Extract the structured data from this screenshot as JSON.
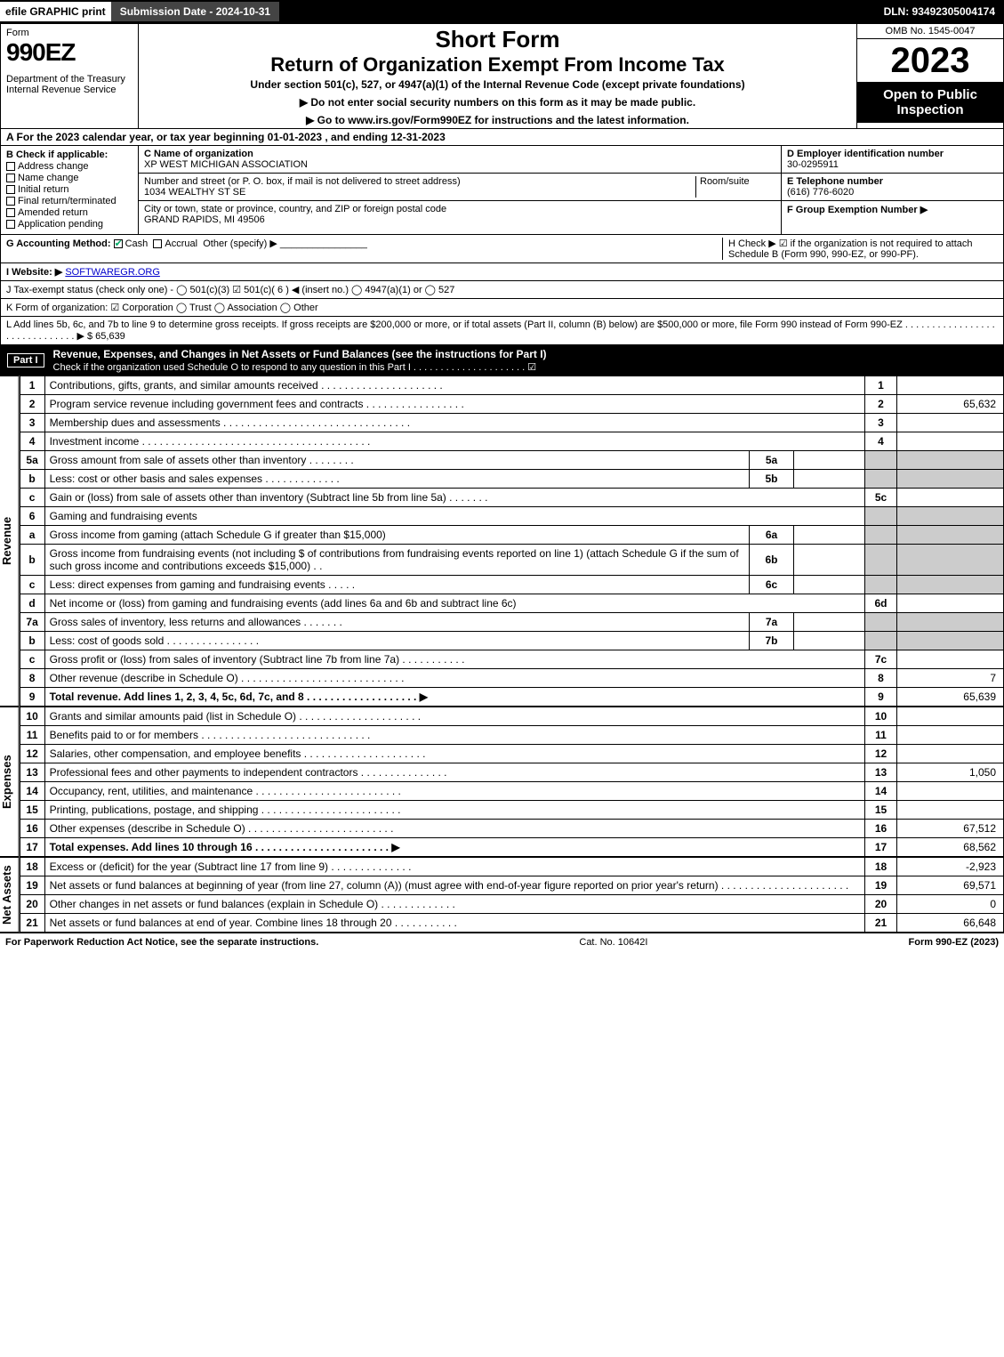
{
  "topbar": {
    "efile": "efile GRAPHIC print",
    "submission": "Submission Date - 2024-10-31",
    "dln": "DLN: 93492305004174"
  },
  "header": {
    "form_label": "Form",
    "form_number": "990EZ",
    "dept": "Department of the Treasury\nInternal Revenue Service",
    "short": "Short Form",
    "title": "Return of Organization Exempt From Income Tax",
    "under": "Under section 501(c), 527, or 4947(a)(1) of the Internal Revenue Code (except private foundations)",
    "note1": "▶ Do not enter social security numbers on this form as it may be made public.",
    "note2": "▶ Go to www.irs.gov/Form990EZ for instructions and the latest information.",
    "omb": "OMB No. 1545-0047",
    "year": "2023",
    "open": "Open to Public Inspection"
  },
  "lineA": "A  For the 2023 calendar year, or tax year beginning 01-01-2023 , and ending 12-31-2023",
  "sectionB": {
    "label": "B  Check if applicable:",
    "items": [
      "Address change",
      "Name change",
      "Initial return",
      "Final return/terminated",
      "Amended return",
      "Application pending"
    ]
  },
  "sectionC": {
    "name_lbl": "C Name of organization",
    "name": "XP WEST MICHIGAN ASSOCIATION",
    "addr_lbl": "Number and street (or P. O. box, if mail is not delivered to street address)",
    "room_lbl": "Room/suite",
    "addr": "1034 WEALTHY ST SE",
    "city_lbl": "City or town, state or province, country, and ZIP or foreign postal code",
    "city": "GRAND RAPIDS, MI  49506"
  },
  "sectionD": {
    "ein_lbl": "D Employer identification number",
    "ein": "30-0295911",
    "tel_lbl": "E Telephone number",
    "tel": "(616) 776-6020",
    "grp_lbl": "F Group Exemption Number  ▶"
  },
  "lineG": {
    "label": "G Accounting Method:",
    "cash": "Cash",
    "accrual": "Accrual",
    "other": "Other (specify) ▶"
  },
  "lineH": "H  Check ▶ ☑ if the organization is not required to attach Schedule B (Form 990, 990-EZ, or 990-PF).",
  "lineI": {
    "label": "I Website: ▶",
    "val": "SOFTWAREGR.ORG"
  },
  "lineJ": "J Tax-exempt status (check only one) - ◯ 501(c)(3)  ☑ 501(c)( 6 ) ◀ (insert no.)  ◯ 4947(a)(1) or  ◯ 527",
  "lineK": "K Form of organization:  ☑ Corporation  ◯ Trust  ◯ Association  ◯ Other",
  "lineL": {
    "text": "L Add lines 5b, 6c, and 7b to line 9 to determine gross receipts. If gross receipts are $200,000 or more, or if total assets (Part II, column (B) below) are $500,000 or more, file Form 990 instead of Form 990-EZ . . . . . . . . . . . . . . . . . . . . . . . . . . . . . . ▶ $",
    "amount": "65,639"
  },
  "part1": {
    "title": "Revenue, Expenses, and Changes in Net Assets or Fund Balances (see the instructions for Part I)",
    "sub": "Check if the organization used Schedule O to respond to any question in this Part I . . . . . . . . . . . . . . . . . . . . . ☑"
  },
  "sections": {
    "revenue": "Revenue",
    "expenses": "Expenses",
    "netassets": "Net Assets"
  },
  "rows": [
    {
      "n": "1",
      "d": "Contributions, gifts, grants, and similar amounts received . . . . . . . . . . . . . . . . . . . . .",
      "r": "1",
      "a": ""
    },
    {
      "n": "2",
      "d": "Program service revenue including government fees and contracts . . . . . . . . . . . . . . . . .",
      "r": "2",
      "a": "65,632"
    },
    {
      "n": "3",
      "d": "Membership dues and assessments . . . . . . . . . . . . . . . . . . . . . . . . . . . . . . . .",
      "r": "3",
      "a": ""
    },
    {
      "n": "4",
      "d": "Investment income . . . . . . . . . . . . . . . . . . . . . . . . . . . . . . . . . . . . . . .",
      "r": "4",
      "a": ""
    },
    {
      "n": "5a",
      "d": "Gross amount from sale of assets other than inventory . . . . . . . .",
      "sub": "5a",
      "sv": ""
    },
    {
      "n": "b",
      "d": "Less: cost or other basis and sales expenses . . . . . . . . . . . . .",
      "sub": "5b",
      "sv": ""
    },
    {
      "n": "c",
      "d": "Gain or (loss) from sale of assets other than inventory (Subtract line 5b from line 5a) . . . . . . .",
      "r": "5c",
      "a": ""
    },
    {
      "n": "6",
      "d": "Gaming and fundraising events",
      "noamt": true
    },
    {
      "n": "a",
      "d": "Gross income from gaming (attach Schedule G if greater than $15,000)",
      "sub": "6a",
      "sv": ""
    },
    {
      "n": "b",
      "d": "Gross income from fundraising events (not including $                      of contributions from fundraising events reported on line 1) (attach Schedule G if the sum of such gross income and contributions exceeds $15,000)   . .",
      "sub": "6b",
      "sv": ""
    },
    {
      "n": "c",
      "d": "Less: direct expenses from gaming and fundraising events   . . . . .",
      "sub": "6c",
      "sv": ""
    },
    {
      "n": "d",
      "d": "Net income or (loss) from gaming and fundraising events (add lines 6a and 6b and subtract line 6c)",
      "r": "6d",
      "a": ""
    },
    {
      "n": "7a",
      "d": "Gross sales of inventory, less returns and allowances . . . . . . .",
      "sub": "7a",
      "sv": ""
    },
    {
      "n": "b",
      "d": "Less: cost of goods sold        . . . . . . . . . . . . . . . .",
      "sub": "7b",
      "sv": ""
    },
    {
      "n": "c",
      "d": "Gross profit or (loss) from sales of inventory (Subtract line 7b from line 7a) . . . . . . . . . . .",
      "r": "7c",
      "a": ""
    },
    {
      "n": "8",
      "d": "Other revenue (describe in Schedule O) . . . . . . . . . . . . . . . . . . . . . . . . . . . .",
      "r": "8",
      "a": "7"
    },
    {
      "n": "9",
      "d": "Total revenue. Add lines 1, 2, 3, 4, 5c, 6d, 7c, and 8  . . . . . . . . . . . . . . . . . . . ▶",
      "r": "9",
      "a": "65,639",
      "bold": true
    }
  ],
  "exp_rows": [
    {
      "n": "10",
      "d": "Grants and similar amounts paid (list in Schedule O) . . . . . . . . . . . . . . . . . . . . .",
      "r": "10",
      "a": ""
    },
    {
      "n": "11",
      "d": "Benefits paid to or for members    . . . . . . . . . . . . . . . . . . . . . . . . . . . . .",
      "r": "11",
      "a": ""
    },
    {
      "n": "12",
      "d": "Salaries, other compensation, and employee benefits . . . . . . . . . . . . . . . . . . . . .",
      "r": "12",
      "a": ""
    },
    {
      "n": "13",
      "d": "Professional fees and other payments to independent contractors . . . . . . . . . . . . . . .",
      "r": "13",
      "a": "1,050"
    },
    {
      "n": "14",
      "d": "Occupancy, rent, utilities, and maintenance . . . . . . . . . . . . . . . . . . . . . . . . .",
      "r": "14",
      "a": ""
    },
    {
      "n": "15",
      "d": "Printing, publications, postage, and shipping . . . . . . . . . . . . . . . . . . . . . . . .",
      "r": "15",
      "a": ""
    },
    {
      "n": "16",
      "d": "Other expenses (describe in Schedule O)   . . . . . . . . . . . . . . . . . . . . . . . . .",
      "r": "16",
      "a": "67,512"
    },
    {
      "n": "17",
      "d": "Total expenses. Add lines 10 through 16    . . . . . . . . . . . . . . . . . . . . . . . ▶",
      "r": "17",
      "a": "68,562",
      "bold": true
    }
  ],
  "na_rows": [
    {
      "n": "18",
      "d": "Excess or (deficit) for the year (Subtract line 17 from line 9)       . . . . . . . . . . . . . .",
      "r": "18",
      "a": "-2,923"
    },
    {
      "n": "19",
      "d": "Net assets or fund balances at beginning of year (from line 27, column (A)) (must agree with end-of-year figure reported on prior year's return) . . . . . . . . . . . . . . . . . . . . . .",
      "r": "19",
      "a": "69,571"
    },
    {
      "n": "20",
      "d": "Other changes in net assets or fund balances (explain in Schedule O) . . . . . . . . . . . . .",
      "r": "20",
      "a": "0"
    },
    {
      "n": "21",
      "d": "Net assets or fund balances at end of year. Combine lines 18 through 20 . . . . . . . . . . .",
      "r": "21",
      "a": "66,648"
    }
  ],
  "footer": {
    "left": "For Paperwork Reduction Act Notice, see the separate instructions.",
    "mid": "Cat. No. 10642I",
    "right": "Form 990-EZ (2023)"
  },
  "colors": {
    "black": "#000000",
    "shade": "#cccccc",
    "link": "#0000cc",
    "check": "#00aa66"
  }
}
